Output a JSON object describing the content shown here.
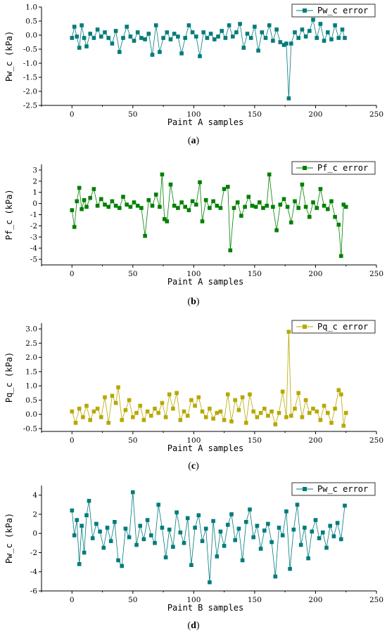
{
  "captions": [
    {
      "pre": "(",
      "letter": "a",
      "post": ")"
    },
    {
      "pre": "(",
      "letter": "b",
      "post": ")"
    },
    {
      "pre": "(",
      "letter": "c",
      "post": ")"
    },
    {
      "pre": "(",
      "letter": "d",
      "post": ")"
    }
  ],
  "chart_data": [
    {
      "type": "line",
      "title": "",
      "xlabel": "Paint A samples",
      "ylabel": "Pw_c (kPa)",
      "xlim": [
        -25,
        250
      ],
      "ylim": [
        -2.5,
        1.0
      ],
      "xticks": [
        0,
        50,
        100,
        150,
        200,
        250
      ],
      "yticks": [
        -2.5,
        -2.0,
        -1.5,
        -1.0,
        -0.5,
        0.0,
        0.5,
        1.0
      ],
      "ytick_labels": [
        "-2.5",
        "-2.0",
        "-1.5",
        "-1.0",
        "-0.5",
        "0.0",
        "0.5",
        "1.0"
      ],
      "xtick_labels": [
        "0",
        "50",
        "100",
        "150",
        "200",
        "250"
      ],
      "color": "#007b7b",
      "marker": "square",
      "legend_position": "top-right",
      "series": [
        {
          "name": "Pw_c error",
          "x": [
            0,
            2,
            4,
            6,
            8,
            10,
            12,
            15,
            18,
            21,
            24,
            27,
            30,
            33,
            36,
            39,
            42,
            45,
            48,
            51,
            54,
            57,
            60,
            63,
            66,
            69,
            72,
            75,
            78,
            81,
            84,
            87,
            90,
            93,
            96,
            99,
            102,
            105,
            108,
            111,
            114,
            117,
            120,
            123,
            126,
            129,
            132,
            135,
            138,
            141,
            144,
            147,
            150,
            153,
            156,
            159,
            162,
            165,
            168,
            171,
            174,
            176,
            178,
            180,
            183,
            186,
            189,
            192,
            195,
            198,
            201,
            204,
            207,
            210,
            213,
            216,
            219,
            222,
            224
          ],
          "y": [
            -0.1,
            0.3,
            -0.05,
            -0.45,
            0.35,
            -0.1,
            -0.4,
            0.05,
            -0.1,
            0.2,
            -0.05,
            0.1,
            -0.1,
            -0.3,
            0.15,
            -0.6,
            -0.1,
            0.3,
            -0.05,
            -0.2,
            0.1,
            -0.1,
            -0.15,
            0.05,
            -0.7,
            0.35,
            -0.6,
            -0.1,
            0.1,
            -0.15,
            0.05,
            -0.05,
            -0.65,
            -0.1,
            0.35,
            0.1,
            -0.05,
            -0.75,
            0.1,
            -0.1,
            0.05,
            -0.15,
            -0.05,
            0.15,
            -0.1,
            0.35,
            -0.05,
            0.1,
            0.4,
            -0.45,
            0.05,
            -0.1,
            0.3,
            -0.55,
            0.1,
            -0.1,
            0.35,
            -0.2,
            0.2,
            -0.25,
            -0.35,
            -0.3,
            -2.25,
            -0.3,
            0.1,
            -0.1,
            0.2,
            -0.05,
            0.15,
            0.55,
            -0.1,
            0.4,
            -0.2,
            0.1,
            -0.15,
            0.35,
            -0.1,
            0.2,
            -0.1
          ]
        }
      ]
    },
    {
      "type": "line",
      "title": "",
      "xlabel": "Paint A samples",
      "ylabel": "Pf_c (kPa)",
      "xlim": [
        -25,
        250
      ],
      "ylim": [
        -5.5,
        3.5
      ],
      "xticks": [
        0,
        50,
        100,
        150,
        200,
        250
      ],
      "yticks": [
        -5,
        -4,
        -3,
        -2,
        -1,
        0,
        1,
        2,
        3
      ],
      "ytick_labels": [
        "-5",
        "-4",
        "-3",
        "-2",
        "-1",
        "0",
        "1",
        "2",
        "3"
      ],
      "xtick_labels": [
        "0",
        "50",
        "100",
        "150",
        "200",
        "250"
      ],
      "color": "#008000",
      "marker": "square",
      "legend_position": "top-right",
      "series": [
        {
          "name": "Pf_c error",
          "x": [
            0,
            2,
            4,
            6,
            8,
            10,
            12,
            15,
            18,
            21,
            24,
            27,
            30,
            33,
            36,
            39,
            42,
            45,
            48,
            51,
            54,
            57,
            60,
            63,
            66,
            69,
            72,
            74,
            76,
            78,
            81,
            84,
            87,
            90,
            93,
            96,
            99,
            102,
            105,
            107,
            110,
            113,
            116,
            119,
            122,
            125,
            128,
            130,
            133,
            136,
            139,
            142,
            145,
            148,
            151,
            154,
            157,
            160,
            162,
            165,
            168,
            171,
            174,
            177,
            180,
            183,
            186,
            189,
            192,
            195,
            198,
            201,
            204,
            207,
            210,
            213,
            216,
            219,
            221,
            223,
            225
          ],
          "y": [
            -0.6,
            -2.1,
            0.2,
            1.4,
            -0.5,
            0.3,
            -0.3,
            0.5,
            1.3,
            -0.2,
            0.4,
            -0.1,
            -0.3,
            0.2,
            -0.2,
            -0.4,
            0.6,
            -0.1,
            -0.3,
            0.1,
            -0.2,
            -0.4,
            -2.9,
            0.3,
            -0.2,
            0.8,
            -0.3,
            2.6,
            -1.4,
            -1.6,
            1.7,
            -0.2,
            -0.4,
            0.1,
            -0.3,
            -0.6,
            0.2,
            -0.1,
            1.9,
            -1.6,
            0.3,
            -0.4,
            0.2,
            -0.2,
            -0.4,
            1.3,
            1.5,
            -4.2,
            -0.4,
            0.1,
            -1.1,
            -0.3,
            0.6,
            -0.2,
            -0.3,
            0.1,
            -0.4,
            -0.2,
            2.6,
            -0.3,
            -2.4,
            -0.1,
            0.4,
            -0.3,
            -1.7,
            0.2,
            -0.4,
            1.7,
            -0.3,
            -1.2,
            0.1,
            -0.4,
            1.3,
            -0.2,
            -0.5,
            0.2,
            -1.2,
            -1.9,
            -4.7,
            -0.1,
            -0.3
          ]
        }
      ]
    },
    {
      "type": "line",
      "title": "",
      "xlabel": "Paint A samples",
      "ylabel": "Pq_c (kPa)",
      "xlim": [
        -25,
        250
      ],
      "ylim": [
        -0.6,
        3.2
      ],
      "xticks": [
        0,
        50,
        100,
        150,
        200,
        250
      ],
      "yticks": [
        -0.5,
        0.0,
        0.5,
        1.0,
        1.5,
        2.0,
        2.5,
        3.0
      ],
      "ytick_labels": [
        "-0.5",
        "0.0",
        "0.5",
        "1.0",
        "1.5",
        "2.0",
        "2.5",
        "3.0"
      ],
      "xtick_labels": [
        "0",
        "50",
        "100",
        "150",
        "200",
        "250"
      ],
      "color": "#b7a800",
      "marker": "square",
      "legend_position": "top-right",
      "series": [
        {
          "name": "Pq_c error",
          "x": [
            0,
            3,
            6,
            9,
            12,
            15,
            18,
            21,
            24,
            27,
            30,
            33,
            36,
            38,
            41,
            44,
            47,
            50,
            53,
            56,
            59,
            62,
            65,
            68,
            71,
            74,
            77,
            80,
            83,
            86,
            89,
            92,
            95,
            98,
            101,
            104,
            107,
            110,
            113,
            116,
            119,
            122,
            125,
            128,
            131,
            134,
            137,
            140,
            143,
            146,
            149,
            152,
            155,
            158,
            161,
            164,
            167,
            170,
            173,
            176,
            178,
            180,
            183,
            186,
            189,
            192,
            195,
            198,
            201,
            204,
            207,
            210,
            213,
            216,
            219,
            221,
            223,
            225
          ],
          "y": [
            0.1,
            -0.3,
            0.2,
            -0.1,
            0.3,
            -0.2,
            0.1,
            0.2,
            -0.1,
            0.6,
            -0.3,
            0.65,
            0.4,
            0.95,
            -0.2,
            0.15,
            0.5,
            -0.1,
            0.05,
            0.3,
            -0.2,
            0.1,
            -0.05,
            0.2,
            0.05,
            0.4,
            -0.1,
            0.7,
            0.2,
            0.75,
            -0.2,
            0.1,
            -0.05,
            0.5,
            0.3,
            0.6,
            0.1,
            -0.1,
            0.2,
            -0.15,
            0.05,
            0.1,
            -0.2,
            0.7,
            -0.25,
            0.5,
            0.15,
            0.6,
            -0.3,
            0.7,
            0.1,
            -0.1,
            0.05,
            0.2,
            -0.05,
            0.1,
            -0.35,
            0.05,
            0.8,
            -0.1,
            2.9,
            -0.05,
            0.2,
            0.75,
            -0.1,
            0.5,
            0.05,
            0.2,
            0.1,
            -0.2,
            0.3,
            0.05,
            -0.3,
            0.2,
            0.85,
            0.7,
            -0.4,
            0.05
          ]
        }
      ]
    },
    {
      "type": "line",
      "title": "",
      "xlabel": "Paint B samples",
      "ylabel": "Pw_c (kPa)",
      "xlim": [
        -25,
        250
      ],
      "ylim": [
        -6,
        5
      ],
      "xticks": [
        0,
        50,
        100,
        150,
        200,
        250
      ],
      "yticks": [
        -6,
        -4,
        -2,
        0,
        2,
        4
      ],
      "ytick_labels": [
        "-6",
        "-4",
        "-2",
        "0",
        "2",
        "4"
      ],
      "xtick_labels": [
        "0",
        "50",
        "100",
        "150",
        "200",
        "250"
      ],
      "color": "#007b7b",
      "marker": "square",
      "legend_position": "top-right",
      "series": [
        {
          "name": "Pw_c error",
          "x": [
            0,
            2,
            4,
            6,
            8,
            10,
            12,
            14,
            17,
            20,
            23,
            26,
            29,
            32,
            35,
            38,
            41,
            44,
            47,
            50,
            53,
            56,
            59,
            62,
            65,
            68,
            71,
            74,
            77,
            80,
            83,
            86,
            89,
            92,
            95,
            98,
            101,
            104,
            107,
            110,
            113,
            116,
            119,
            122,
            125,
            128,
            131,
            134,
            137,
            140,
            143,
            146,
            149,
            152,
            155,
            158,
            161,
            164,
            167,
            170,
            173,
            176,
            179,
            182,
            185,
            188,
            191,
            194,
            197,
            200,
            203,
            206,
            209,
            212,
            215,
            218,
            221,
            224
          ],
          "y": [
            2.4,
            -0.2,
            1.4,
            -3.2,
            0.8,
            -2.0,
            1.9,
            3.4,
            -0.5,
            1.0,
            0.2,
            -1.5,
            0.6,
            -0.8,
            1.2,
            -2.8,
            -3.4,
            0.5,
            -0.4,
            4.3,
            -1.2,
            0.8,
            -0.6,
            1.4,
            -0.2,
            -1.0,
            3.0,
            0.6,
            -2.5,
            0.4,
            -1.4,
            2.2,
            0.1,
            -1.0,
            1.6,
            -3.3,
            0.6,
            1.9,
            -0.8,
            0.5,
            -5.1,
            1.3,
            -2.4,
            0.2,
            -1.3,
            0.9,
            2.0,
            -0.7,
            0.5,
            -2.8,
            1.2,
            2.5,
            -0.4,
            0.8,
            -1.6,
            0.3,
            1.0,
            -0.9,
            -4.5,
            0.6,
            -0.2,
            2.3,
            -3.7,
            0.4,
            3.0,
            -1.2,
            0.6,
            -2.6,
            0.2,
            1.4,
            -0.5,
            0.1,
            -1.5,
            0.8,
            -0.3,
            1.1,
            -0.6,
            2.9
          ]
        }
      ]
    }
  ]
}
